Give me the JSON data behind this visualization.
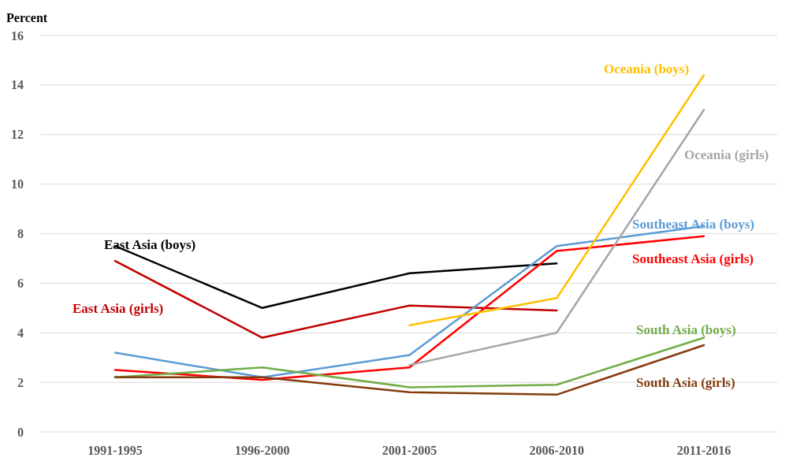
{
  "chart_data": {
    "type": "line",
    "ylabel": "Percent",
    "categories": [
      "1991-1995",
      "1996-2000",
      "2001-2005",
      "2006-2010",
      "2011-2016"
    ],
    "ylim": [
      0,
      16
    ],
    "yticks": [
      0,
      2,
      4,
      6,
      8,
      10,
      12,
      14,
      16
    ],
    "grid": "y",
    "marker": "none",
    "line_style": "solid",
    "series": [
      {
        "name": "East Asia (boys)",
        "color": "#000000",
        "values": [
          7.5,
          5.0,
          6.4,
          6.8,
          null
        ]
      },
      {
        "name": "East Asia (girls)",
        "color": "#c00000",
        "values": [
          6.9,
          3.8,
          5.1,
          4.9,
          null
        ]
      },
      {
        "name": "Southeast Asia (boys)",
        "color": "#5b9bd5",
        "values": [
          3.2,
          2.2,
          3.1,
          7.5,
          8.3
        ]
      },
      {
        "name": "Southeast Asia (girls)",
        "color": "#ff0000",
        "values": [
          2.5,
          2.1,
          2.6,
          7.3,
          7.9
        ]
      },
      {
        "name": "Oceania (boys)",
        "color": "#ffc000",
        "values": [
          null,
          null,
          4.3,
          5.4,
          14.4
        ]
      },
      {
        "name": "Oceania (girls)",
        "color": "#a5a5a5",
        "values": [
          null,
          null,
          2.7,
          4.0,
          13.0
        ]
      },
      {
        "name": "South Asia (boys)",
        "color": "#70ad47",
        "values": [
          2.2,
          2.6,
          1.8,
          1.9,
          3.8
        ]
      },
      {
        "name": "South Asia (girls)",
        "color": "#843c0c",
        "values": [
          2.2,
          2.2,
          1.6,
          1.5,
          3.5
        ]
      }
    ]
  }
}
